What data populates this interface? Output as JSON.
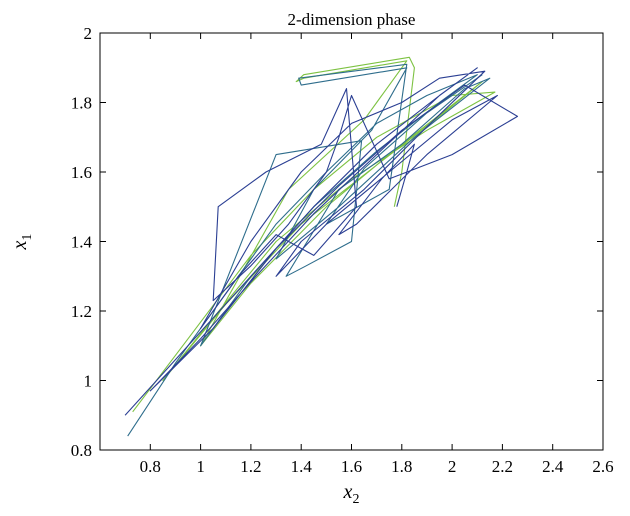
{
  "chart_data": {
    "type": "line",
    "title": "2-dimension phase",
    "xlabel": "x",
    "xlabel_sub": "2",
    "ylabel": "x",
    "ylabel_sub": "1",
    "xlim": [
      0.6,
      2.6
    ],
    "ylim": [
      0.8,
      2.0
    ],
    "xticks": [
      0.8,
      1,
      1.2,
      1.4,
      1.6,
      1.8,
      2,
      2.2,
      2.4,
      2.6
    ],
    "xtick_labels": [
      "0.8",
      "1",
      "1.2",
      "1.4",
      "1.6",
      "1.8",
      "2",
      "2.2",
      "2.4",
      "2.6"
    ],
    "yticks": [
      0.8,
      1,
      1.2,
      1.4,
      1.6,
      1.8,
      2
    ],
    "ytick_labels": [
      "0.8",
      "1",
      "1.2",
      "1.4",
      "1.6",
      "1.8",
      "2"
    ],
    "grid": false,
    "series": [
      {
        "color": "#7dc242",
        "points": [
          [
            0.73,
            0.91
          ],
          [
            0.95,
            1.12
          ],
          [
            1.2,
            1.36
          ],
          [
            1.45,
            1.55
          ],
          [
            1.7,
            1.7
          ],
          [
            2.0,
            1.82
          ],
          [
            2.17,
            1.83
          ],
          [
            1.9,
            1.72
          ],
          [
            1.6,
            1.58
          ],
          [
            1.3,
            1.4
          ],
          [
            1.05,
            1.18
          ],
          [
            0.85,
            1.0
          ],
          [
            1.1,
            1.22
          ],
          [
            1.4,
            1.45
          ],
          [
            1.7,
            1.62
          ],
          [
            1.95,
            1.76
          ],
          [
            2.12,
            1.86
          ],
          [
            1.8,
            1.68
          ],
          [
            1.5,
            1.5
          ],
          [
            1.2,
            1.28
          ],
          [
            1.0,
            1.1
          ],
          [
            1.35,
            1.55
          ],
          [
            1.65,
            1.75
          ],
          [
            1.82,
            1.92
          ],
          [
            1.41,
            1.87
          ],
          [
            1.38,
            1.86
          ],
          [
            1.41,
            1.88
          ],
          [
            1.83,
            1.93
          ],
          [
            1.85,
            1.9
          ],
          [
            1.8,
            1.6
          ],
          [
            1.77,
            1.5
          ]
        ]
      },
      {
        "color": "#2e6d8c",
        "points": [
          [
            0.71,
            0.84
          ],
          [
            0.9,
            1.05
          ],
          [
            1.1,
            1.25
          ],
          [
            1.3,
            1.45
          ],
          [
            1.5,
            1.6
          ],
          [
            1.7,
            1.74
          ],
          [
            1.9,
            1.82
          ],
          [
            2.1,
            1.88
          ],
          [
            1.95,
            1.8
          ],
          [
            1.7,
            1.66
          ],
          [
            1.45,
            1.5
          ],
          [
            1.2,
            1.3
          ],
          [
            1.0,
            1.1
          ],
          [
            1.3,
            1.65
          ],
          [
            1.64,
            1.69
          ],
          [
            1.6,
            1.4
          ],
          [
            1.42,
            1.33
          ],
          [
            1.34,
            1.3
          ],
          [
            1.55,
            1.55
          ],
          [
            1.8,
            1.68
          ],
          [
            2.05,
            1.84
          ],
          [
            2.15,
            1.87
          ],
          [
            1.85,
            1.7
          ],
          [
            1.55,
            1.5
          ],
          [
            1.3,
            1.35
          ],
          [
            1.45,
            1.55
          ],
          [
            1.68,
            1.72
          ],
          [
            1.82,
            1.9
          ],
          [
            1.4,
            1.85
          ],
          [
            1.39,
            1.87
          ],
          [
            1.82,
            1.91
          ],
          [
            1.75,
            1.55
          ],
          [
            1.5,
            1.45
          ],
          [
            1.65,
            1.61
          ],
          [
            1.9,
            1.77
          ],
          [
            2.12,
            1.88
          ]
        ]
      },
      {
        "color": "#2b3f93",
        "points": [
          [
            0.7,
            0.9
          ],
          [
            0.95,
            1.1
          ],
          [
            1.2,
            1.3
          ],
          [
            1.45,
            1.5
          ],
          [
            1.7,
            1.68
          ],
          [
            1.95,
            1.82
          ],
          [
            2.1,
            1.9
          ],
          [
            1.95,
            1.82
          ],
          [
            1.7,
            1.65
          ],
          [
            1.45,
            1.48
          ],
          [
            1.22,
            1.3
          ],
          [
            1.0,
            1.12
          ],
          [
            0.8,
            0.97
          ],
          [
            1.05,
            1.15
          ],
          [
            1.3,
            1.38
          ],
          [
            1.55,
            1.56
          ],
          [
            1.8,
            1.72
          ],
          [
            2.05,
            1.85
          ],
          [
            2.26,
            1.76
          ],
          [
            2.0,
            1.65
          ],
          [
            1.75,
            1.58
          ],
          [
            1.6,
            1.82
          ],
          [
            1.55,
            1.7
          ],
          [
            1.5,
            1.6
          ],
          [
            1.35,
            1.45
          ],
          [
            1.2,
            1.33
          ],
          [
            1.05,
            1.23
          ],
          [
            1.07,
            1.5
          ],
          [
            1.26,
            1.6
          ],
          [
            1.48,
            1.68
          ],
          [
            1.58,
            1.84
          ],
          [
            1.62,
            1.5
          ],
          [
            1.45,
            1.36
          ],
          [
            1.3,
            1.42
          ],
          [
            1.15,
            1.3
          ],
          [
            1.0,
            1.15
          ],
          [
            1.2,
            1.4
          ],
          [
            1.4,
            1.6
          ],
          [
            1.6,
            1.74
          ],
          [
            1.8,
            1.8
          ],
          [
            1.95,
            1.87
          ],
          [
            2.13,
            1.89
          ],
          [
            1.9,
            1.73
          ],
          [
            1.65,
            1.55
          ],
          [
            1.4,
            1.4
          ],
          [
            1.3,
            1.3
          ],
          [
            1.5,
            1.45
          ],
          [
            1.75,
            1.6
          ],
          [
            2.0,
            1.75
          ],
          [
            2.18,
            1.82
          ],
          [
            1.9,
            1.65
          ],
          [
            1.62,
            1.45
          ],
          [
            1.55,
            1.42
          ],
          [
            1.72,
            1.58
          ],
          [
            1.85,
            1.68
          ],
          [
            1.82,
            1.6
          ],
          [
            1.78,
            1.5
          ]
        ]
      }
    ]
  }
}
